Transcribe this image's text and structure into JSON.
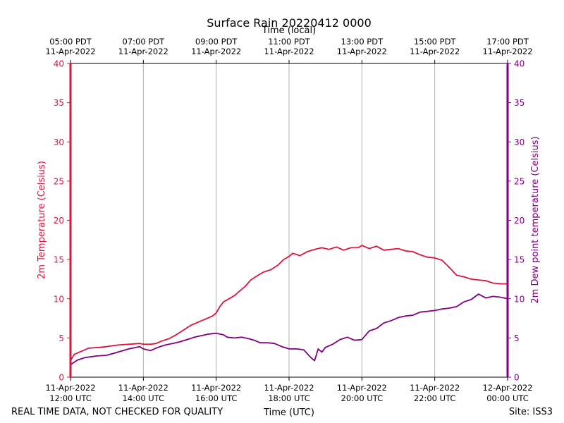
{
  "chart_data": {
    "type": "line",
    "title": "Surface Rain 20220412 0000",
    "top_xlabel": "Time (local)",
    "xlabel": "Time (UTC)",
    "ylabel_left": "2m Temperature (Celsius)",
    "ylabel_right": "2m Dew point temperature (Celsius)",
    "ylim": [
      0,
      40
    ],
    "yticks": [
      0,
      5,
      10,
      15,
      20,
      25,
      30,
      35,
      40
    ],
    "x_range_hours_utc": [
      12,
      24
    ],
    "grid": "vertical",
    "bottom_ticks": [
      {
        "hour": 12,
        "line1": "11-Apr-2022",
        "line2": "12:00 UTC"
      },
      {
        "hour": 14,
        "line1": "11-Apr-2022",
        "line2": "14:00 UTC"
      },
      {
        "hour": 16,
        "line1": "11-Apr-2022",
        "line2": "16:00 UTC"
      },
      {
        "hour": 18,
        "line1": "11-Apr-2022",
        "line2": "18:00 UTC"
      },
      {
        "hour": 20,
        "line1": "11-Apr-2022",
        "line2": "20:00 UTC"
      },
      {
        "hour": 22,
        "line1": "11-Apr-2022",
        "line2": "22:00 UTC"
      },
      {
        "hour": 24,
        "line1": "12-Apr-2022",
        "line2": "00:00 UTC"
      }
    ],
    "top_ticks": [
      {
        "hour": 12,
        "line1": "05:00 PDT",
        "line2": "11-Apr-2022"
      },
      {
        "hour": 14,
        "line1": "07:00 PDT",
        "line2": "11-Apr-2022"
      },
      {
        "hour": 16,
        "line1": "09:00 PDT",
        "line2": "11-Apr-2022"
      },
      {
        "hour": 18,
        "line1": "11:00 PDT",
        "line2": "11-Apr-2022"
      },
      {
        "hour": 20,
        "line1": "13:00 PDT",
        "line2": "11-Apr-2022"
      },
      {
        "hour": 22,
        "line1": "15:00 PDT",
        "line2": "11-Apr-2022"
      },
      {
        "hour": 24,
        "line1": "17:00 PDT",
        "line2": "11-Apr-2022"
      }
    ],
    "series": [
      {
        "color": "#dc143c",
        "axis": "left",
        "points": [
          [
            12.0,
            2.1
          ],
          [
            12.1,
            2.9
          ],
          [
            12.3,
            3.3
          ],
          [
            12.5,
            3.7
          ],
          [
            12.8,
            3.8
          ],
          [
            13.0,
            3.9
          ],
          [
            13.3,
            4.1
          ],
          [
            13.6,
            4.2
          ],
          [
            13.9,
            4.3
          ],
          [
            14.0,
            4.2
          ],
          [
            14.2,
            4.2
          ],
          [
            14.35,
            4.3
          ],
          [
            14.5,
            4.6
          ],
          [
            14.7,
            4.9
          ],
          [
            14.9,
            5.4
          ],
          [
            15.1,
            6.0
          ],
          [
            15.3,
            6.6
          ],
          [
            15.5,
            7.0
          ],
          [
            15.7,
            7.4
          ],
          [
            15.9,
            7.8
          ],
          [
            16.0,
            8.2
          ],
          [
            16.1,
            9.0
          ],
          [
            16.2,
            9.6
          ],
          [
            16.35,
            10.0
          ],
          [
            16.5,
            10.4
          ],
          [
            16.65,
            11.0
          ],
          [
            16.8,
            11.6
          ],
          [
            16.95,
            12.4
          ],
          [
            17.15,
            13.0
          ],
          [
            17.3,
            13.4
          ],
          [
            17.5,
            13.7
          ],
          [
            17.7,
            14.3
          ],
          [
            17.85,
            15.0
          ],
          [
            18.0,
            15.4
          ],
          [
            18.1,
            15.8
          ],
          [
            18.3,
            15.5
          ],
          [
            18.5,
            16.0
          ],
          [
            18.7,
            16.3
          ],
          [
            18.9,
            16.5
          ],
          [
            19.1,
            16.3
          ],
          [
            19.3,
            16.6
          ],
          [
            19.5,
            16.2
          ],
          [
            19.7,
            16.5
          ],
          [
            19.9,
            16.5
          ],
          [
            20.0,
            16.8
          ],
          [
            20.2,
            16.4
          ],
          [
            20.4,
            16.7
          ],
          [
            20.6,
            16.2
          ],
          [
            20.8,
            16.3
          ],
          [
            21.0,
            16.4
          ],
          [
            21.2,
            16.1
          ],
          [
            21.4,
            16.0
          ],
          [
            21.6,
            15.6
          ],
          [
            21.8,
            15.3
          ],
          [
            22.0,
            15.2
          ],
          [
            22.2,
            14.9
          ],
          [
            22.4,
            14.0
          ],
          [
            22.6,
            13.0
          ],
          [
            22.8,
            12.8
          ],
          [
            23.0,
            12.5
          ],
          [
            23.2,
            12.4
          ],
          [
            23.4,
            12.3
          ],
          [
            23.6,
            12.0
          ],
          [
            23.8,
            11.9
          ],
          [
            24.0,
            11.9
          ]
        ]
      },
      {
        "color": "#800080",
        "axis": "right",
        "points": [
          [
            12.0,
            1.6
          ],
          [
            12.2,
            2.2
          ],
          [
            12.4,
            2.5
          ],
          [
            12.7,
            2.7
          ],
          [
            13.0,
            2.8
          ],
          [
            13.3,
            3.2
          ],
          [
            13.6,
            3.6
          ],
          [
            13.9,
            3.9
          ],
          [
            14.0,
            3.6
          ],
          [
            14.1,
            3.5
          ],
          [
            14.2,
            3.4
          ],
          [
            14.4,
            3.8
          ],
          [
            14.6,
            4.1
          ],
          [
            14.8,
            4.3
          ],
          [
            15.0,
            4.5
          ],
          [
            15.2,
            4.8
          ],
          [
            15.4,
            5.1
          ],
          [
            15.6,
            5.3
          ],
          [
            15.8,
            5.5
          ],
          [
            16.0,
            5.6
          ],
          [
            16.2,
            5.4
          ],
          [
            16.3,
            5.1
          ],
          [
            16.5,
            5.0
          ],
          [
            16.7,
            5.1
          ],
          [
            16.9,
            4.9
          ],
          [
            17.05,
            4.7
          ],
          [
            17.2,
            4.4
          ],
          [
            17.4,
            4.4
          ],
          [
            17.6,
            4.3
          ],
          [
            17.8,
            3.9
          ],
          [
            18.0,
            3.6
          ],
          [
            18.2,
            3.6
          ],
          [
            18.4,
            3.5
          ],
          [
            18.6,
            2.5
          ],
          [
            18.7,
            2.1
          ],
          [
            18.8,
            3.6
          ],
          [
            18.9,
            3.2
          ],
          [
            19.0,
            3.8
          ],
          [
            19.2,
            4.2
          ],
          [
            19.4,
            4.8
          ],
          [
            19.6,
            5.1
          ],
          [
            19.8,
            4.7
          ],
          [
            20.0,
            4.8
          ],
          [
            20.2,
            5.9
          ],
          [
            20.4,
            6.2
          ],
          [
            20.6,
            6.9
          ],
          [
            20.8,
            7.2
          ],
          [
            21.0,
            7.6
          ],
          [
            21.2,
            7.8
          ],
          [
            21.4,
            7.9
          ],
          [
            21.6,
            8.3
          ],
          [
            21.8,
            8.4
          ],
          [
            22.0,
            8.5
          ],
          [
            22.2,
            8.7
          ],
          [
            22.4,
            8.8
          ],
          [
            22.6,
            9.0
          ],
          [
            22.8,
            9.6
          ],
          [
            23.0,
            9.9
          ],
          [
            23.2,
            10.6
          ],
          [
            23.4,
            10.1
          ],
          [
            23.6,
            10.3
          ],
          [
            23.8,
            10.2
          ],
          [
            24.0,
            10.0
          ]
        ]
      }
    ]
  },
  "footer": {
    "left": "REAL TIME DATA, NOT CHECKED FOR QUALITY",
    "right": "Site: ISS3"
  }
}
